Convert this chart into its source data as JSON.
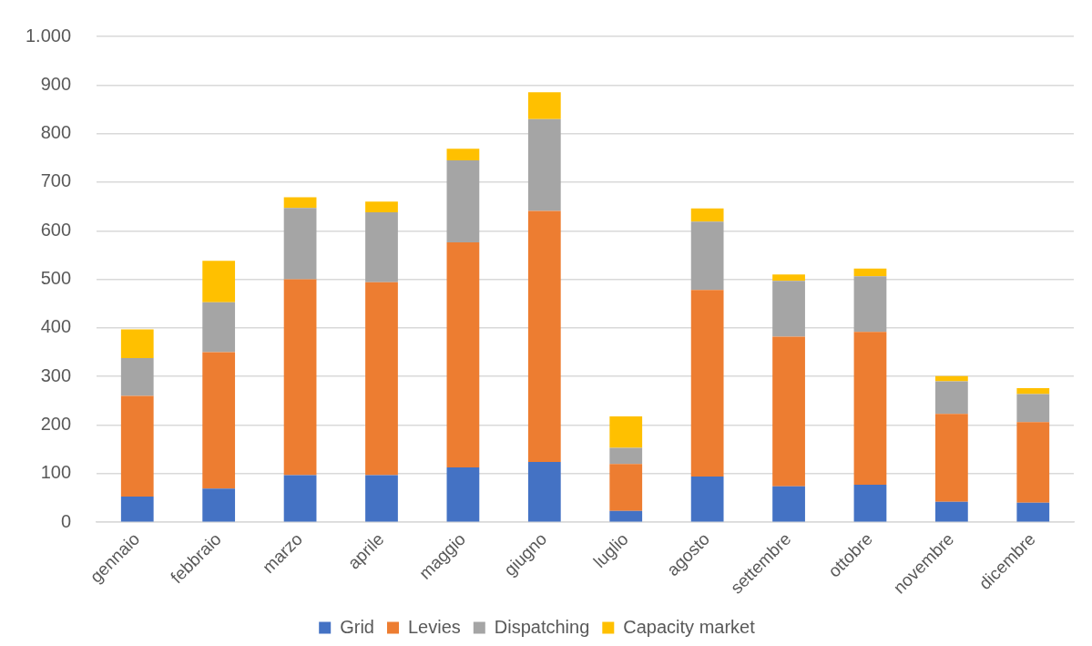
{
  "chart_data": {
    "type": "bar",
    "stacked": true,
    "categories": [
      "gennaio",
      "febbraio",
      "marzo",
      "aprile",
      "maggio",
      "giugno",
      "luglio",
      "agosto",
      "settembre",
      "ottobre",
      "novembre",
      "dicembre"
    ],
    "series": [
      {
        "name": "Grid",
        "color": "#4472c4",
        "values": [
          53,
          69,
          97,
          97,
          113,
          124,
          23,
          94,
          74,
          77,
          42,
          40
        ]
      },
      {
        "name": "Levies",
        "color": "#ed7d31",
        "values": [
          207,
          281,
          403,
          397,
          463,
          517,
          97,
          384,
          308,
          315,
          181,
          166
        ]
      },
      {
        "name": "Dispatching",
        "color": "#a5a5a5",
        "values": [
          78,
          103,
          147,
          144,
          169,
          189,
          33,
          141,
          115,
          114,
          67,
          58
        ]
      },
      {
        "name": "Capacity market",
        "color": "#ffc000",
        "values": [
          59,
          85,
          22,
          22,
          24,
          55,
          65,
          27,
          13,
          16,
          11,
          12
        ]
      }
    ],
    "ylim": [
      0,
      1000
    ],
    "yticks": [
      0,
      100,
      200,
      300,
      400,
      500,
      600,
      700,
      800,
      900,
      {
        "value": 1000,
        "label": "1.000"
      }
    ],
    "grid": "y",
    "legend": "bottom"
  }
}
